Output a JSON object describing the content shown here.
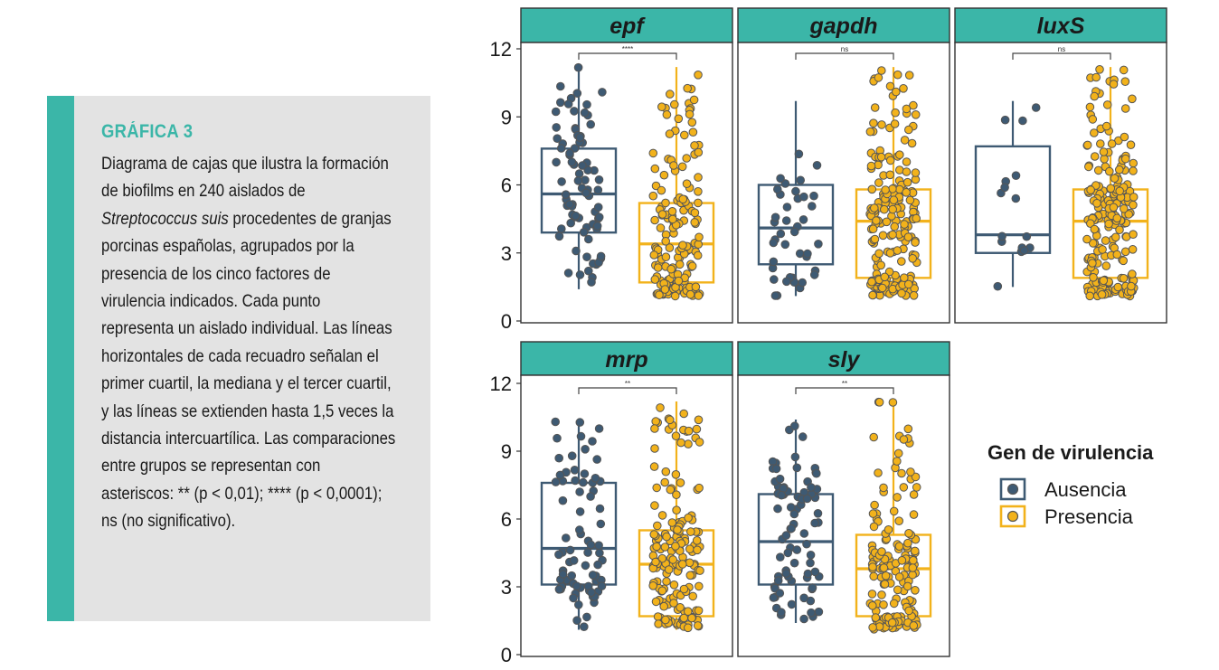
{
  "caption": {
    "title": "GRÁFICA 3",
    "text_before_italic": "Diagrama de cajas que ilustra la formación de biofilms en 240 aislados de ",
    "italic": "Streptococcus suis",
    "text_after_italic": " procedentes de granjas porcinas españolas, agrupados por la presencia de los cinco factores de virulencia indicados. Cada punto representa un aislado individual. Las líneas horizontales de cada recuadro señalan el primer cuartil, la mediana y el tercer cuartil, y las líneas se extienden hasta 1,5 veces la distancia intercuartílica. Las comparaciones entre grupos se representan con asteriscos: ** (p < 0,01); **** (p < 0,0001); ns (no significativo)."
  },
  "colors": {
    "accent": "#3bb6a8",
    "ausencia": "#3e5a73",
    "presencia": "#f2b21b",
    "point_stroke": "#555555"
  },
  "chart_data": {
    "type": "box",
    "ylim": [
      0,
      12.5
    ],
    "yticks": [
      "0",
      "3",
      "6",
      "9",
      "12"
    ],
    "legend": {
      "title": "Gen de virulencia",
      "placement": "right",
      "entries": [
        "Ausencia",
        "Presencia"
      ]
    },
    "panels": [
      {
        "gene": "epf",
        "significance": "****",
        "groups": [
          {
            "group": "Ausencia",
            "q1": 3.9,
            "median": 5.6,
            "q3": 7.6,
            "whisker_low": 1.4,
            "whisker_high": 11.2,
            "n_points": 80
          },
          {
            "group": "Presencia",
            "q1": 1.7,
            "median": 3.4,
            "q3": 5.2,
            "whisker_low": 1.1,
            "whisker_high": 11.2,
            "n_points": 160
          }
        ]
      },
      {
        "gene": "gapdh",
        "significance": "ns",
        "groups": [
          {
            "group": "Ausencia",
            "q1": 2.5,
            "median": 4.1,
            "q3": 6.0,
            "whisker_low": 1.1,
            "whisker_high": 9.7,
            "n_points": 40
          },
          {
            "group": "Presencia",
            "q1": 1.9,
            "median": 4.4,
            "q3": 5.8,
            "whisker_low": 1.1,
            "whisker_high": 11.2,
            "n_points": 200
          }
        ]
      },
      {
        "gene": "luxS",
        "significance": "ns",
        "groups": [
          {
            "group": "Ausencia",
            "q1": 3.0,
            "median": 3.8,
            "q3": 7.7,
            "whisker_low": 1.5,
            "whisker_high": 9.7,
            "n_points": 16
          },
          {
            "group": "Presencia",
            "q1": 1.9,
            "median": 4.4,
            "q3": 5.8,
            "whisker_low": 1.1,
            "whisker_high": 11.2,
            "n_points": 224
          }
        ]
      },
      {
        "gene": "mrp",
        "significance": "**",
        "groups": [
          {
            "group": "Ausencia",
            "q1": 3.1,
            "median": 4.7,
            "q3": 7.6,
            "whisker_low": 1.1,
            "whisker_high": 10.4,
            "n_points": 75
          },
          {
            "group": "Presencia",
            "q1": 1.7,
            "median": 4.0,
            "q3": 5.5,
            "whisker_low": 1.1,
            "whisker_high": 11.2,
            "n_points": 165
          }
        ]
      },
      {
        "gene": "sly",
        "significance": "**",
        "groups": [
          {
            "group": "Ausencia",
            "q1": 3.1,
            "median": 5.0,
            "q3": 7.1,
            "whisker_low": 1.4,
            "whisker_high": 10.4,
            "n_points": 80
          },
          {
            "group": "Presencia",
            "q1": 1.7,
            "median": 3.8,
            "q3": 5.3,
            "whisker_low": 1.1,
            "whisker_high": 11.2,
            "n_points": 160
          }
        ]
      }
    ]
  }
}
